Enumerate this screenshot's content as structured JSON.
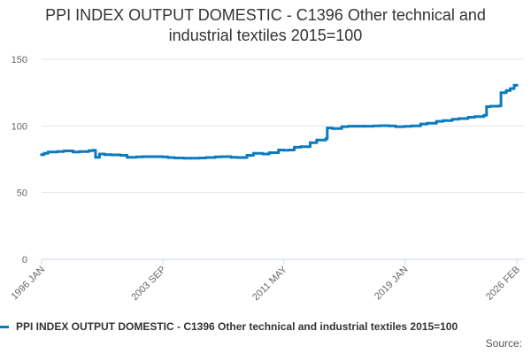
{
  "chart_data": {
    "type": "line",
    "title_lines": [
      "PPI INDEX OUTPUT DOMESTIC - C1396 Other technical and",
      "industrial textiles 2015=100"
    ],
    "x_tick_labels": [
      "1996 JAN",
      "2003 SEP",
      "2011 MAY",
      "2019 JAN",
      "2026 FEB"
    ],
    "x_range": [
      "1996-01",
      "2026-02"
    ],
    "y_ticks": [
      "0",
      "50",
      "100",
      "150"
    ],
    "ylim": [
      0,
      150
    ],
    "grid": "horizontal",
    "legend_position": "bottom",
    "series": [
      {
        "name": "PPI INDEX OUTPUT DOMESTIC - C1396 Other technical and industrial textiles 2015=100",
        "color": "#0b7bc1",
        "points": [
          [
            "1996-01",
            78.5
          ],
          [
            "1996-03",
            79.5
          ],
          [
            "1996-06",
            80.5
          ],
          [
            "1997-01",
            80.8
          ],
          [
            "1997-06",
            81.3
          ],
          [
            "1998-01",
            80.5
          ],
          [
            "1998-06",
            80.8
          ],
          [
            "1999-01",
            81.5
          ],
          [
            "1999-04",
            81.8
          ],
          [
            "1999-06",
            76.5
          ],
          [
            "1999-09",
            79.0
          ],
          [
            "2000-01",
            78.5
          ],
          [
            "2000-06",
            78.3
          ],
          [
            "2001-01",
            78.0
          ],
          [
            "2001-06",
            76.5
          ],
          [
            "2002-01",
            76.8
          ],
          [
            "2002-06",
            77.0
          ],
          [
            "2003-01",
            77.0
          ],
          [
            "2003-09",
            76.8
          ],
          [
            "2004-01",
            76.3
          ],
          [
            "2004-06",
            76.0
          ],
          [
            "2005-01",
            75.8
          ],
          [
            "2005-06",
            75.8
          ],
          [
            "2006-01",
            76.0
          ],
          [
            "2006-06",
            76.3
          ],
          [
            "2007-01",
            76.8
          ],
          [
            "2007-06",
            77.0
          ],
          [
            "2008-01",
            76.5
          ],
          [
            "2008-06",
            76.3
          ],
          [
            "2009-01",
            78.0
          ],
          [
            "2009-06",
            79.5
          ],
          [
            "2010-01",
            79.0
          ],
          [
            "2010-06",
            80.0
          ],
          [
            "2011-01",
            82.0
          ],
          [
            "2011-05",
            81.8
          ],
          [
            "2011-09",
            82.0
          ],
          [
            "2012-01",
            84.0
          ],
          [
            "2012-06",
            84.5
          ],
          [
            "2013-01",
            87.5
          ],
          [
            "2013-06",
            89.5
          ],
          [
            "2014-01",
            90.5
          ],
          [
            "2014-02",
            98.5
          ],
          [
            "2014-06",
            98.0
          ],
          [
            "2015-01",
            99.5
          ],
          [
            "2015-06",
            99.8
          ],
          [
            "2016-01",
            99.8
          ],
          [
            "2016-06",
            99.8
          ],
          [
            "2017-01",
            100.0
          ],
          [
            "2017-06",
            100.2
          ],
          [
            "2018-01",
            100.0
          ],
          [
            "2018-06",
            99.5
          ],
          [
            "2019-01",
            99.7
          ],
          [
            "2019-06",
            100.0
          ],
          [
            "2020-01",
            101.5
          ],
          [
            "2020-06",
            102.0
          ],
          [
            "2021-01",
            103.5
          ],
          [
            "2021-06",
            104.0
          ],
          [
            "2022-01",
            105.0
          ],
          [
            "2022-06",
            105.5
          ],
          [
            "2023-01",
            106.5
          ],
          [
            "2023-06",
            107.0
          ],
          [
            "2024-01",
            108.0
          ],
          [
            "2024-03",
            114.5
          ],
          [
            "2024-06",
            114.8
          ],
          [
            "2024-12",
            115.0
          ],
          [
            "2025-02",
            125.0
          ],
          [
            "2025-06",
            126.5
          ],
          [
            "2025-09",
            128.0
          ],
          [
            "2025-12",
            130.5
          ],
          [
            "2026-02",
            130.5
          ]
        ]
      }
    ]
  },
  "footer": {
    "source_label": "Source:"
  }
}
